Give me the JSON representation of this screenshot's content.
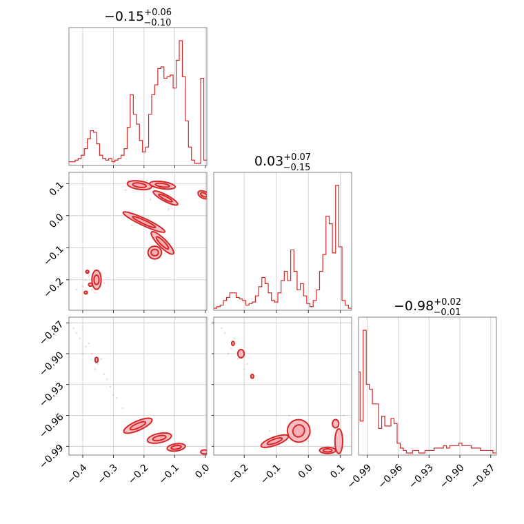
{
  "chart_data": {
    "type": "corner",
    "color": "#d62728",
    "fill_color": "#f4aab0",
    "grid": true,
    "parameters": [
      {
        "title": {
          "value": "−0.15",
          "plus": "+0.06",
          "minus": "−0.10"
        },
        "range": [
          -0.445,
          0.005
        ],
        "ticks": [
          -0.4,
          -0.3,
          -0.2,
          -0.1,
          0.0
        ],
        "tick_labels": [
          "−0.4",
          "−0.3",
          "−0.2",
          "−0.1",
          "0.0"
        ]
      },
      {
        "title": {
          "value": "0.03",
          "plus": "+0.07",
          "minus": "−0.15"
        },
        "range": [
          -0.295,
          0.135
        ],
        "ticks": [
          -0.2,
          -0.1,
          0.0,
          0.1
        ],
        "tick_labels": [
          "−0.2",
          "−0.1",
          "0.0",
          "0.1"
        ]
      },
      {
        "title": {
          "value": "−0.98",
          "plus": "+0.02",
          "minus": "−0.01"
        },
        "range": [
          -0.9985,
          -0.8645
        ],
        "ticks": [
          -0.99,
          -0.96,
          -0.93,
          -0.9,
          -0.87
        ],
        "tick_labels": [
          "−0.99",
          "−0.96",
          "−0.93",
          "−0.90",
          "−0.87"
        ]
      }
    ],
    "histograms": [
      {
        "param": 0,
        "x": [
          -0.44,
          -0.43,
          -0.42,
          -0.41,
          -0.4,
          -0.39,
          -0.38,
          -0.37,
          -0.36,
          -0.35,
          -0.34,
          -0.33,
          -0.32,
          -0.31,
          -0.3,
          -0.29,
          -0.28,
          -0.27,
          -0.26,
          -0.25,
          -0.24,
          -0.23,
          -0.22,
          -0.21,
          -0.2,
          -0.19,
          -0.18,
          -0.17,
          -0.16,
          -0.15,
          -0.14,
          -0.13,
          -0.12,
          -0.11,
          -0.1,
          -0.09,
          -0.08,
          -0.07,
          -0.06,
          -0.05,
          -0.04,
          -0.03,
          -0.02,
          -0.01,
          0.0
        ],
        "values": [
          1,
          1,
          2,
          3,
          5,
          9,
          15,
          20,
          19,
          12,
          5,
          3,
          2,
          3,
          1,
          2,
          3,
          5,
          9,
          22,
          42,
          30,
          24,
          14,
          7,
          10,
          30,
          42,
          48,
          58,
          59,
          52,
          53,
          54,
          46,
          63,
          75,
          53,
          26,
          10,
          2,
          0,
          0,
          52,
          2
        ]
      },
      {
        "param": 1,
        "x": [
          -0.29,
          -0.28,
          -0.27,
          -0.26,
          -0.25,
          -0.24,
          -0.23,
          -0.22,
          -0.21,
          -0.2,
          -0.19,
          -0.18,
          -0.17,
          -0.16,
          -0.15,
          -0.14,
          -0.13,
          -0.12,
          -0.11,
          -0.1,
          -0.09,
          -0.08,
          -0.07,
          -0.06,
          -0.05,
          -0.04,
          -0.03,
          -0.02,
          -0.01,
          0.0,
          0.01,
          0.02,
          0.03,
          0.04,
          0.05,
          0.06,
          0.07,
          0.08,
          0.09,
          0.1,
          0.11,
          0.12,
          0.13
        ],
        "values": [
          0,
          1,
          2,
          5,
          7,
          10,
          10,
          7,
          6,
          5,
          2,
          3,
          4,
          8,
          14,
          20,
          16,
          10,
          5,
          4,
          10,
          18,
          24,
          18,
          38,
          24,
          12,
          16,
          8,
          3,
          1,
          5,
          12,
          24,
          35,
          60,
          55,
          36,
          80,
          40,
          5,
          2,
          0
        ]
      },
      {
        "param": 2,
        "x": [
          -0.9985,
          -0.9955,
          -0.9925,
          -0.9895,
          -0.9865,
          -0.9835,
          -0.9805,
          -0.9775,
          -0.9745,
          -0.9715,
          -0.9685,
          -0.9655,
          -0.9625,
          -0.9595,
          -0.9565,
          -0.9535,
          -0.9505,
          -0.9475,
          -0.9445,
          -0.9415,
          -0.9385,
          -0.9355,
          -0.9325,
          -0.9295,
          -0.9265,
          -0.9235,
          -0.9205,
          -0.9175,
          -0.9145,
          -0.9115,
          -0.9085,
          -0.9055,
          -0.9025,
          -0.8995,
          -0.8965,
          -0.8935,
          -0.8905,
          -0.8875,
          -0.8845,
          -0.8815,
          -0.8785,
          -0.8755,
          -0.8725,
          -0.8695,
          -0.8665
        ],
        "values": [
          33,
          13,
          50,
          28,
          26,
          20,
          20,
          10,
          15,
          11,
          11,
          14,
          12,
          4,
          2,
          1,
          0,
          0,
          1,
          1,
          0,
          0,
          1,
          1,
          1,
          2,
          2,
          2,
          3,
          2,
          3,
          3,
          3,
          4,
          3,
          3,
          3,
          2,
          2,
          2,
          1,
          1,
          1,
          1,
          0
        ]
      }
    ],
    "contours": [
      {
        "x_param": 0,
        "y_param": 1,
        "blobs": [
          {
            "cx": -0.215,
            "cy": 0.095,
            "rx": 0.04,
            "ry": 0.013,
            "angle": -8
          },
          {
            "cx": -0.14,
            "cy": 0.095,
            "rx": 0.042,
            "ry": 0.011,
            "angle": -8
          },
          {
            "cx": -0.13,
            "cy": 0.055,
            "rx": 0.045,
            "ry": 0.01,
            "angle": -28
          },
          {
            "cx": -0.005,
            "cy": 0.065,
            "rx": 0.02,
            "ry": 0.011,
            "angle": -25
          },
          {
            "cx": -0.2,
            "cy": -0.02,
            "rx": 0.075,
            "ry": 0.011,
            "angle": -25
          },
          {
            "cx": -0.14,
            "cy": -0.085,
            "rx": 0.05,
            "ry": 0.013,
            "angle": -45
          },
          {
            "cx": -0.165,
            "cy": -0.115,
            "rx": 0.022,
            "ry": 0.02,
            "angle": 0
          },
          {
            "cx": -0.355,
            "cy": -0.2,
            "rx": 0.015,
            "ry": 0.03,
            "angle": 0
          },
          {
            "cx": -0.375,
            "cy": -0.215,
            "rx": 0.006,
            "ry": 0.005,
            "angle": 0
          },
          {
            "cx": -0.385,
            "cy": -0.175,
            "rx": 0.005,
            "ry": 0.004,
            "angle": 0
          },
          {
            "cx": -0.39,
            "cy": -0.24,
            "rx": 0.005,
            "ry": 0.004,
            "angle": 0
          }
        ],
        "points": [
          {
            "x": -0.39,
            "y": -0.2
          },
          {
            "x": -0.37,
            "y": -0.23
          },
          {
            "x": -0.34,
            "y": -0.18
          },
          {
            "x": -0.4,
            "y": -0.22
          },
          {
            "x": -0.36,
            "y": -0.24
          },
          {
            "x": -0.33,
            "y": -0.21
          },
          {
            "x": -0.38,
            "y": -0.19
          },
          {
            "x": -0.42,
            "y": -0.23
          },
          {
            "x": -0.25,
            "y": 0.11
          },
          {
            "x": -0.23,
            "y": 0.1
          },
          {
            "x": -0.19,
            "y": 0.11
          },
          {
            "x": -0.26,
            "y": 0.08
          },
          {
            "x": -0.18,
            "y": 0.05
          },
          {
            "x": -0.24,
            "y": -0.03
          },
          {
            "x": -0.15,
            "y": -0.06
          },
          {
            "x": -0.12,
            "y": 0.02
          }
        ]
      },
      {
        "x_param": 0,
        "y_param": 2,
        "blobs": [
          {
            "cx": -0.22,
            "cy": -0.97,
            "rx": 0.05,
            "ry": 0.0045,
            "angle": 24
          },
          {
            "cx": -0.15,
            "cy": -0.982,
            "rx": 0.04,
            "ry": 0.0045,
            "angle": 12
          },
          {
            "cx": -0.095,
            "cy": -0.991,
            "rx": 0.03,
            "ry": 0.0035,
            "angle": 8
          },
          {
            "cx": -0.003,
            "cy": -0.9955,
            "rx": 0.012,
            "ry": 0.002,
            "angle": 0
          },
          {
            "cx": -0.355,
            "cy": -0.906,
            "rx": 0.005,
            "ry": 0.0025,
            "angle": 0
          }
        ],
        "points": [
          {
            "x": -0.43,
            "y": -0.875
          },
          {
            "x": -0.41,
            "y": -0.885
          },
          {
            "x": -0.39,
            "y": -0.893
          },
          {
            "x": -0.37,
            "y": -0.9
          },
          {
            "x": -0.35,
            "y": -0.91
          },
          {
            "x": -0.33,
            "y": -0.92
          },
          {
            "x": -0.31,
            "y": -0.932
          },
          {
            "x": -0.29,
            "y": -0.943
          },
          {
            "x": -0.27,
            "y": -0.953
          },
          {
            "x": -0.38,
            "y": -0.89
          },
          {
            "x": -0.36,
            "y": -0.915
          },
          {
            "x": -0.34,
            "y": -0.905
          },
          {
            "x": -0.42,
            "y": -0.88
          },
          {
            "x": -0.3,
            "y": -0.94
          },
          {
            "x": -0.32,
            "y": -0.925
          },
          {
            "x": -0.4,
            "y": -0.9
          }
        ]
      },
      {
        "x_param": 1,
        "y_param": 2,
        "blobs": [
          {
            "cx": -0.105,
            "cy": -0.985,
            "rx": 0.045,
            "ry": 0.004,
            "angle": 20
          },
          {
            "cx": -0.03,
            "cy": -0.975,
            "rx": 0.035,
            "ry": 0.011,
            "angle": 60
          },
          {
            "cx": 0.06,
            "cy": -0.994,
            "rx": 0.025,
            "ry": 0.003,
            "angle": 0
          },
          {
            "cx": 0.095,
            "cy": -0.985,
            "rx": 0.012,
            "ry": 0.012,
            "angle": 0
          },
          {
            "cx": 0.085,
            "cy": -0.968,
            "rx": 0.01,
            "ry": 0.004,
            "angle": 0
          },
          {
            "cx": -0.21,
            "cy": -0.9,
            "rx": 0.01,
            "ry": 0.004,
            "angle": 0
          },
          {
            "cx": -0.235,
            "cy": -0.89,
            "rx": 0.004,
            "ry": 0.002,
            "angle": 0
          },
          {
            "cx": -0.175,
            "cy": -0.922,
            "rx": 0.004,
            "ry": 0.002,
            "angle": 0
          }
        ],
        "points": [
          {
            "x": -0.26,
            "y": -0.88
          },
          {
            "x": -0.24,
            "y": -0.895
          },
          {
            "x": -0.22,
            "y": -0.905
          },
          {
            "x": -0.2,
            "y": -0.915
          },
          {
            "x": -0.25,
            "y": -0.9
          },
          {
            "x": -0.23,
            "y": -0.885
          },
          {
            "x": -0.19,
            "y": -0.91
          },
          {
            "x": -0.27,
            "y": -0.875
          },
          {
            "x": -0.12,
            "y": -0.975
          },
          {
            "x": -0.06,
            "y": -0.96
          },
          {
            "x": 0.0,
            "y": -0.985
          },
          {
            "x": 0.11,
            "y": -0.96
          }
        ]
      }
    ]
  }
}
